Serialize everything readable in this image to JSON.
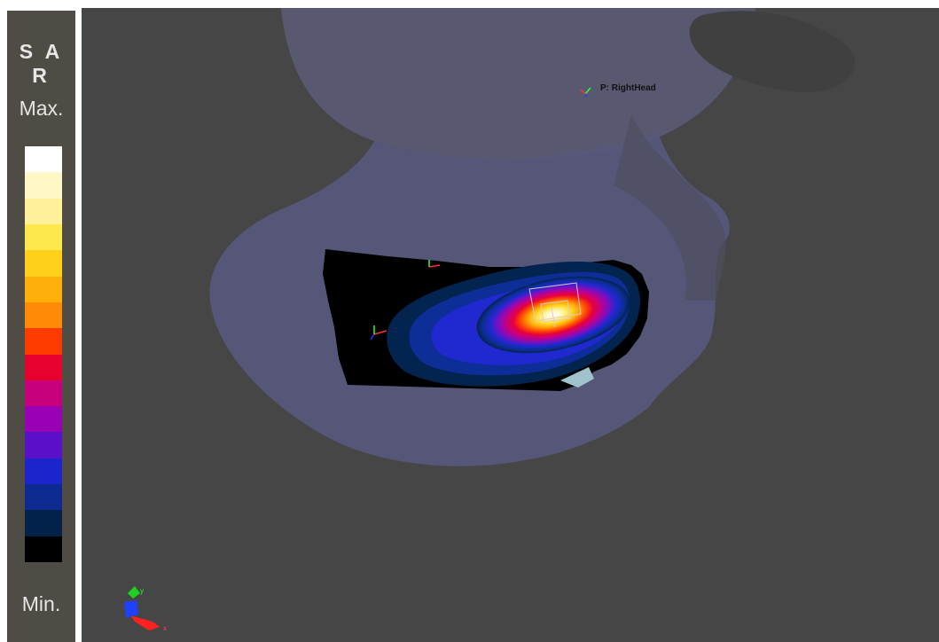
{
  "legend": {
    "title": "S A R",
    "max_label": "Max.",
    "min_label": "Min.",
    "colors": [
      "#ffffff",
      "#fff8c6",
      "#fff09a",
      "#ffe84e",
      "#ffd11a",
      "#ffaf0a",
      "#ff8a08",
      "#ff3c00",
      "#e8002e",
      "#c8007a",
      "#9a00b4",
      "#5a10c8",
      "#1c24cc",
      "#0c2a90",
      "#02224a",
      "#000000"
    ]
  },
  "viewport": {
    "probe_label": "P: RightHead",
    "background": "#464646"
  },
  "axes": {
    "x_label": "x",
    "y_label": "y"
  }
}
